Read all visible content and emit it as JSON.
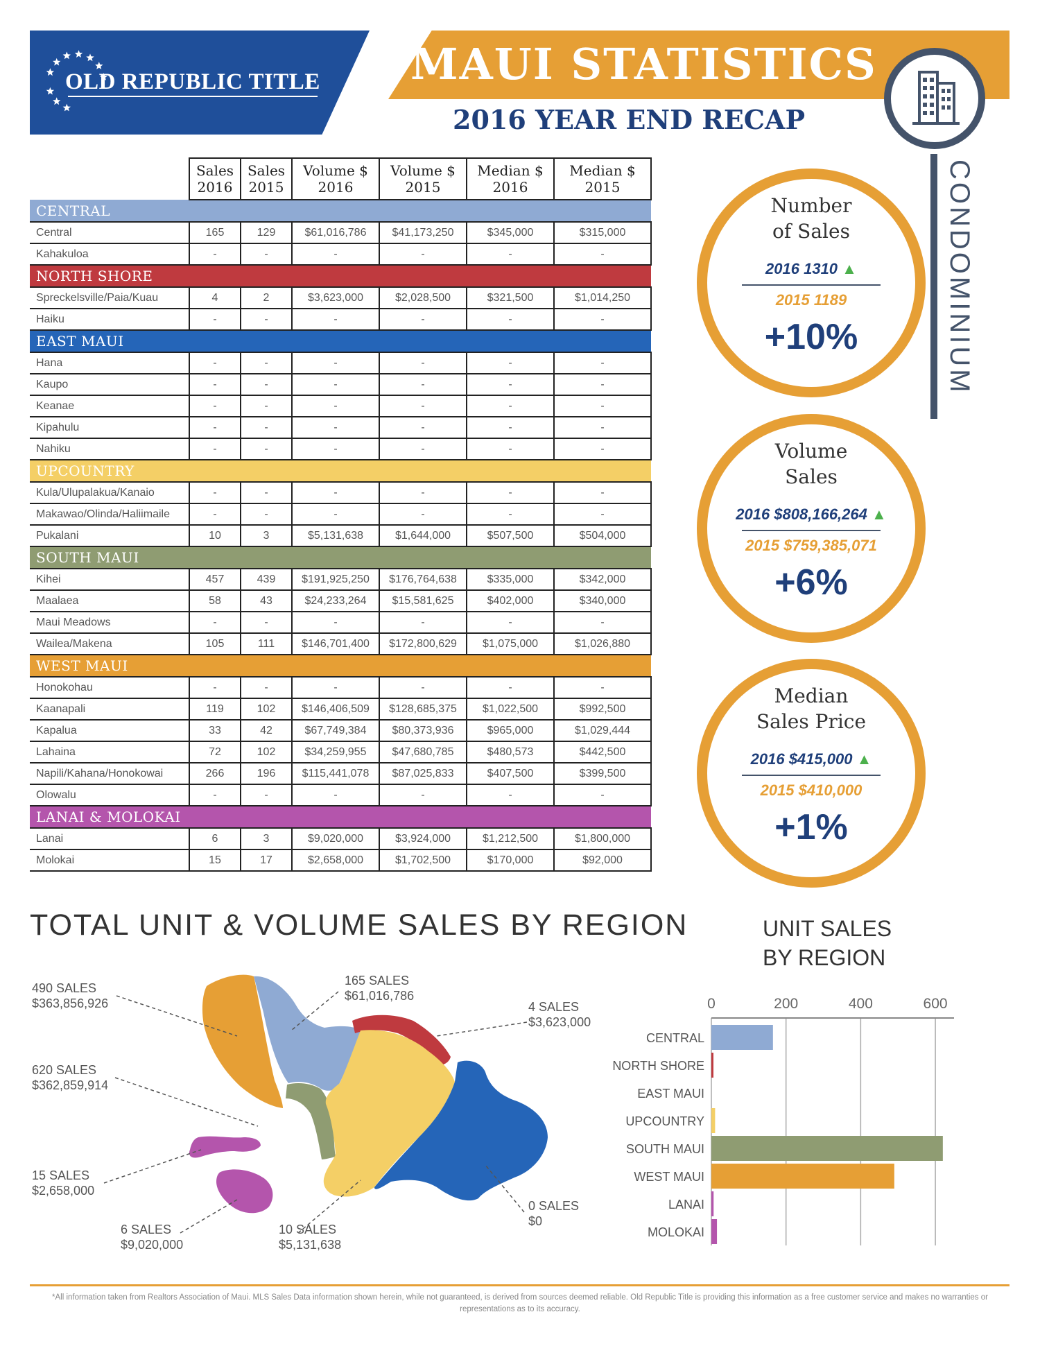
{
  "header": {
    "logo_text": "OLD REPUBLIC TITLE",
    "title": "MAUI STATISTICS",
    "subtitle": "2016 YEAR END RECAP",
    "side_label": "CONDOMINIUM",
    "colors": {
      "blue": "#1f4f9a",
      "orange": "#e69f35",
      "slate": "#44536a"
    }
  },
  "table": {
    "columns": [
      "Sales\n2016",
      "Sales\n2015",
      "Volume $\n2016",
      "Volume $\n2015",
      "Median $\n2016",
      "Median $\n2015"
    ],
    "regions": [
      {
        "name": "CENTRAL",
        "color": "#8faad3",
        "rows": [
          {
            "area": "Central",
            "values": [
              "165",
              "129",
              "$61,016,786",
              "$41,173,250",
              "$345,000",
              "$315,000"
            ]
          },
          {
            "area": "Kahakuloa",
            "values": [
              "-",
              "-",
              "-",
              "-",
              "-",
              "-"
            ]
          }
        ]
      },
      {
        "name": "NORTH SHORE",
        "color": "#bf3a3f",
        "rows": [
          {
            "area": "Spreckelsville/Paia/Kuau",
            "values": [
              "4",
              "2",
              "$3,623,000",
              "$2,028,500",
              "$321,500",
              "$1,014,250"
            ]
          },
          {
            "area": "Haiku",
            "values": [
              "-",
              "-",
              "-",
              "-",
              "-",
              "-"
            ]
          }
        ]
      },
      {
        "name": "EAST MAUI",
        "color": "#2565b8",
        "rows": [
          {
            "area": "Hana",
            "values": [
              "-",
              "-",
              "-",
              "-",
              "-",
              "-"
            ]
          },
          {
            "area": "Kaupo",
            "values": [
              "-",
              "-",
              "-",
              "-",
              "-",
              "-"
            ]
          },
          {
            "area": "Keanae",
            "values": [
              "-",
              "-",
              "-",
              "-",
              "-",
              "-"
            ]
          },
          {
            "area": "Kipahulu",
            "values": [
              "-",
              "-",
              "-",
              "-",
              "-",
              "-"
            ]
          },
          {
            "area": "Nahiku",
            "values": [
              "-",
              "-",
              "-",
              "-",
              "-",
              "-"
            ]
          }
        ]
      },
      {
        "name": "UPCOUNTRY",
        "color": "#f4cf66",
        "rows": [
          {
            "area": "Kula/Ulupalakua/Kanaio",
            "values": [
              "-",
              "-",
              "-",
              "-",
              "-",
              "-"
            ]
          },
          {
            "area": "Makawao/Olinda/Haliimaile",
            "values": [
              "-",
              "-",
              "-",
              "-",
              "-",
              "-"
            ]
          },
          {
            "area": "Pukalani",
            "values": [
              "10",
              "3",
              "$5,131,638",
              "$1,644,000",
              "$507,500",
              "$504,000"
            ]
          }
        ]
      },
      {
        "name": "SOUTH MAUI",
        "color": "#8f9c72",
        "rows": [
          {
            "area": "Kihei",
            "values": [
              "457",
              "439",
              "$191,925,250",
              "$176,764,638",
              "$335,000",
              "$342,000"
            ]
          },
          {
            "area": "Maalaea",
            "values": [
              "58",
              "43",
              "$24,233,264",
              "$15,581,625",
              "$402,000",
              "$340,000"
            ]
          },
          {
            "area": "Maui Meadows",
            "values": [
              "-",
              "-",
              "-",
              "-",
              "-",
              "-"
            ]
          },
          {
            "area": "Wailea/Makena",
            "values": [
              "105",
              "111",
              "$146,701,400",
              "$172,800,629",
              "$1,075,000",
              "$1,026,880"
            ]
          }
        ]
      },
      {
        "name": "WEST MAUI",
        "color": "#e69f35",
        "rows": [
          {
            "area": "Honokohau",
            "values": [
              "-",
              "-",
              "-",
              "-",
              "-",
              "-"
            ]
          },
          {
            "area": "Kaanapali",
            "values": [
              "119",
              "102",
              "$146,406,509",
              "$128,685,375",
              "$1,022,500",
              "$992,500"
            ]
          },
          {
            "area": "Kapalua",
            "values": [
              "33",
              "42",
              "$67,749,384",
              "$80,373,936",
              "$965,000",
              "$1,029,444"
            ]
          },
          {
            "area": "Lahaina",
            "values": [
              "72",
              "102",
              "$34,259,955",
              "$47,680,785",
              "$480,573",
              "$442,500"
            ]
          },
          {
            "area": "Napili/Kahana/Honokowai",
            "values": [
              "266",
              "196",
              "$115,441,078",
              "$87,025,833",
              "$407,500",
              "$399,500"
            ]
          },
          {
            "area": "Olowalu",
            "values": [
              "-",
              "-",
              "-",
              "-",
              "-",
              "-"
            ]
          }
        ]
      },
      {
        "name": "LANAI & MOLOKAI",
        "color": "#b455ac",
        "rows": [
          {
            "area": "Lanai",
            "values": [
              "6",
              "3",
              "$9,020,000",
              "$3,924,000",
              "$1,212,500",
              "$1,800,000"
            ]
          },
          {
            "area": "Molokai",
            "values": [
              "15",
              "17",
              "$2,658,000",
              "$1,702,500",
              "$170,000",
              "$92,000"
            ]
          }
        ]
      }
    ]
  },
  "stats": [
    {
      "title": "Number\nof Sales",
      "line_2016": "2016  1310",
      "line_2015": "2015  1189",
      "change": "+10%"
    },
    {
      "title": "Volume\nSales",
      "line_2016": "2016  $808,166,264",
      "line_2015": "2015  $759,385,071",
      "change": "+6%"
    },
    {
      "title": "Median\nSales Price",
      "line_2016": "2016  $415,000",
      "line_2015": "2015  $410,000",
      "change": "+1%"
    }
  ],
  "map": {
    "title": "TOTAL UNIT & VOLUME SALES BY REGION",
    "labels": [
      {
        "sales": "490 SALES",
        "volume": "$363,856,926"
      },
      {
        "sales": "165 SALES",
        "volume": "$61,016,786"
      },
      {
        "sales": "4 SALES",
        "volume": "$3,623,000"
      },
      {
        "sales": "620 SALES",
        "volume": "$362,859,914"
      },
      {
        "sales": "15 SALES",
        "volume": "$2,658,000"
      },
      {
        "sales": "6 SALES",
        "volume": "$9,020,000"
      },
      {
        "sales": "10 SALES",
        "volume": "$5,131,638"
      },
      {
        "sales": "0 SALES",
        "volume": "$0"
      }
    ]
  },
  "chart_data": {
    "type": "bar",
    "orientation": "horizontal",
    "title": "UNIT SALES\nBY REGION",
    "categories": [
      "CENTRAL",
      "NORTH SHORE",
      "EAST MAUI",
      "UPCOUNTRY",
      "SOUTH MAUI",
      "WEST MAUI",
      "LANAI",
      "MOLOKAI"
    ],
    "values": [
      165,
      4,
      0,
      10,
      620,
      490,
      6,
      15
    ],
    "colors": [
      "#8faad3",
      "#bf3a3f",
      "#2565b8",
      "#f4cf66",
      "#8f9c72",
      "#e69f35",
      "#b455ac",
      "#b455ac"
    ],
    "xticks": [
      0,
      200,
      400,
      600
    ],
    "xlim": [
      0,
      650
    ],
    "grid": true,
    "axis_position": "top"
  },
  "footnote": "*All information taken from Realtors Association of Maui. MLS Sales Data information shown herein, while not guaranteed, is derived from sources deemed reliable. Old Republic Title is providing this information as a free customer service and makes no warranties or representations as to its accuracy."
}
